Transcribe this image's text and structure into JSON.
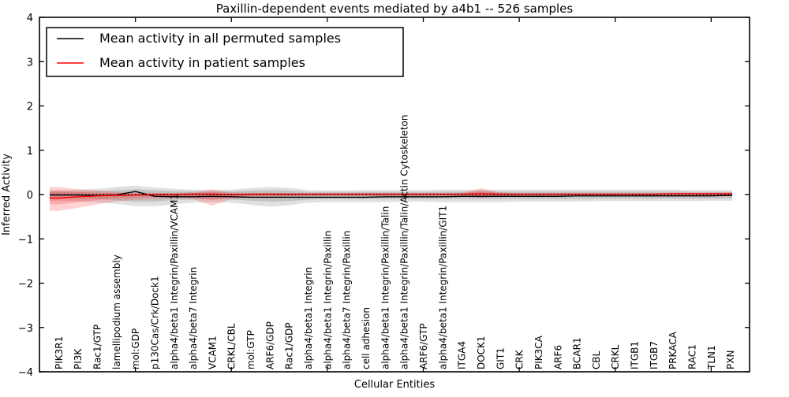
{
  "chart_data": {
    "type": "line",
    "title": "Paxillin-dependent events mediated by a4b1 -- 526 samples",
    "xlabel": "Cellular Entities",
    "ylabel": "Inferred Activity",
    "ylim": [
      -4,
      4
    ],
    "xlim": [
      0,
      37
    ],
    "yticks": [
      -4,
      -3,
      -2,
      -1,
      0,
      1,
      2,
      3,
      4
    ],
    "xticks_unlabeled": [
      5,
      10,
      15,
      20,
      25,
      30,
      35
    ],
    "grid": false,
    "legend_position": "upper left",
    "categories": [
      "PIK3R1",
      "PI3K",
      "Rac1/GTP",
      "lamellipodium assembly",
      "mol:GDP",
      "p130Cas/Crk/Dock1",
      "alpha4/beta1 Integrin/Paxillin/VCAM1",
      "alpha4/beta7 Integrin",
      "VCAM1",
      "CRKL/CBL",
      "mol:GTP",
      "ARF6/GDP",
      "Rac1/GDP",
      "alpha4/beta1 Integrin",
      "alpha4/beta1 Integrin/Paxillin",
      "alpha4/beta7 Integrin/Paxillin",
      "cell adhesion",
      "alpha4/beta1 Integrin/Paxillin/Talin",
      "alpha4/beta1 Integrin/Paxillin/Talin/Actin Cytoskeleton",
      "ARF6/GTP",
      "alpha4/beta1 Integrin/Paxillin/GIT1",
      "ITGA4",
      "DOCK1",
      "GIT1",
      "CRK",
      "PIK3CA",
      "ARF6",
      "BCAR1",
      "CBL",
      "CRKL",
      "ITGB1",
      "ITGB7",
      "PRKACA",
      "RAC1",
      "TLN1",
      "PXN"
    ],
    "zero_line": {
      "value": 0,
      "style": "dotted",
      "color": "#000000"
    },
    "legend": {
      "entries": [
        {
          "label": "Mean activity in all permuted samples",
          "color": "#000000"
        },
        {
          "label": "Mean activity in patient samples",
          "color": "#ff0000"
        }
      ]
    },
    "series": [
      {
        "name": "Mean activity in all permuted samples",
        "color": "#000000",
        "values": [
          -0.01,
          -0.01,
          -0.02,
          -0.01,
          0.07,
          -0.04,
          -0.05,
          -0.05,
          -0.04,
          -0.05,
          -0.06,
          -0.06,
          -0.06,
          -0.06,
          -0.06,
          -0.06,
          -0.06,
          -0.05,
          -0.05,
          -0.05,
          -0.05,
          -0.04,
          -0.04,
          -0.04,
          -0.04,
          -0.04,
          -0.04,
          -0.03,
          -0.03,
          -0.03,
          -0.03,
          -0.03,
          -0.03,
          -0.03,
          -0.03,
          -0.02
        ]
      },
      {
        "name": "Mean activity in patient samples",
        "color": "#ff0000",
        "values": [
          -0.08,
          -0.05,
          -0.03,
          -0.02,
          -0.01,
          0.0,
          0.0,
          0.01,
          0.01,
          0.0,
          0.01,
          0.01,
          0.01,
          0.01,
          0.01,
          0.01,
          0.01,
          0.01,
          0.01,
          0.01,
          0.01,
          0.01,
          0.02,
          0.01,
          0.01,
          0.01,
          0.01,
          0.01,
          0.01,
          0.01,
          0.01,
          0.01,
          0.02,
          0.02,
          0.02,
          0.02
        ]
      }
    ],
    "bands": [
      {
        "name": "permuted-std-outer",
        "color": "#000000",
        "opacity": 0.12,
        "upper": [
          0.1,
          0.11,
          0.13,
          0.17,
          0.2,
          0.16,
          0.13,
          0.11,
          0.11,
          0.11,
          0.15,
          0.17,
          0.15,
          0.1,
          0.09,
          0.09,
          0.1,
          0.1,
          0.1,
          0.1,
          0.11,
          0.11,
          0.11,
          0.11,
          0.11,
          0.11,
          0.11,
          0.11,
          0.11,
          0.11,
          0.11,
          0.11,
          0.11,
          0.1,
          0.1,
          0.1
        ],
        "lower": [
          -0.14,
          -0.15,
          -0.17,
          -0.21,
          -0.26,
          -0.26,
          -0.22,
          -0.18,
          -0.17,
          -0.18,
          -0.23,
          -0.27,
          -0.24,
          -0.18,
          -0.17,
          -0.17,
          -0.17,
          -0.17,
          -0.16,
          -0.16,
          -0.17,
          -0.17,
          -0.17,
          -0.17,
          -0.16,
          -0.16,
          -0.16,
          -0.16,
          -0.15,
          -0.15,
          -0.15,
          -0.15,
          -0.15,
          -0.15,
          -0.14,
          -0.14
        ]
      },
      {
        "name": "permuted-std-inner",
        "color": "#000000",
        "opacity": 0.12,
        "upper": [
          0.06,
          0.07,
          0.08,
          0.1,
          0.12,
          0.1,
          0.08,
          0.07,
          0.07,
          0.07,
          0.09,
          0.1,
          0.09,
          0.06,
          0.06,
          0.06,
          0.06,
          0.06,
          0.06,
          0.06,
          0.07,
          0.07,
          0.07,
          0.07,
          0.07,
          0.07,
          0.07,
          0.07,
          0.07,
          0.07,
          0.07,
          0.07,
          0.07,
          0.06,
          0.06,
          0.06
        ],
        "lower": [
          -0.09,
          -0.09,
          -0.1,
          -0.13,
          -0.16,
          -0.16,
          -0.13,
          -0.11,
          -0.1,
          -0.11,
          -0.14,
          -0.16,
          -0.15,
          -0.11,
          -0.1,
          -0.1,
          -0.1,
          -0.1,
          -0.1,
          -0.1,
          -0.1,
          -0.1,
          -0.1,
          -0.1,
          -0.1,
          -0.1,
          -0.1,
          -0.1,
          -0.09,
          -0.09,
          -0.09,
          -0.09,
          -0.09,
          -0.09,
          -0.09,
          -0.09
        ]
      },
      {
        "name": "patient-std-outer",
        "color": "#ff0000",
        "opacity": 0.18,
        "upper": [
          0.17,
          0.12,
          0.09,
          0.06,
          0.05,
          0.04,
          0.04,
          0.05,
          0.11,
          0.05,
          0.04,
          0.04,
          0.03,
          0.03,
          0.03,
          0.03,
          0.03,
          0.03,
          0.03,
          0.03,
          0.03,
          0.04,
          0.14,
          0.05,
          0.03,
          0.03,
          0.03,
          0.03,
          0.03,
          0.03,
          0.03,
          0.03,
          0.04,
          0.04,
          0.04,
          0.05
        ],
        "lower": [
          -0.37,
          -0.3,
          -0.22,
          -0.15,
          -0.12,
          -0.1,
          -0.08,
          -0.1,
          -0.25,
          -0.1,
          -0.06,
          -0.06,
          -0.05,
          -0.04,
          -0.04,
          -0.04,
          -0.04,
          -0.04,
          -0.04,
          -0.04,
          -0.04,
          -0.04,
          -0.08,
          -0.05,
          -0.04,
          -0.03,
          -0.03,
          -0.03,
          -0.03,
          -0.03,
          -0.03,
          -0.03,
          -0.03,
          -0.03,
          -0.03,
          -0.04
        ]
      },
      {
        "name": "patient-std-inner",
        "color": "#ff0000",
        "opacity": 0.18,
        "upper": [
          0.08,
          0.06,
          0.04,
          0.03,
          0.02,
          0.02,
          0.02,
          0.03,
          0.06,
          0.02,
          0.02,
          0.02,
          0.02,
          0.02,
          0.02,
          0.02,
          0.02,
          0.02,
          0.02,
          0.02,
          0.02,
          0.02,
          0.08,
          0.03,
          0.02,
          0.02,
          0.02,
          0.02,
          0.02,
          0.02,
          0.02,
          0.02,
          0.02,
          0.02,
          0.02,
          0.03
        ],
        "lower": [
          -0.22,
          -0.17,
          -0.12,
          -0.08,
          -0.06,
          -0.05,
          -0.04,
          -0.05,
          -0.13,
          -0.05,
          -0.04,
          -0.03,
          -0.03,
          -0.02,
          -0.02,
          -0.02,
          -0.02,
          -0.02,
          -0.02,
          -0.02,
          -0.02,
          -0.02,
          -0.04,
          -0.03,
          -0.02,
          -0.02,
          -0.02,
          -0.02,
          -0.02,
          -0.02,
          -0.02,
          -0.02,
          -0.02,
          -0.02,
          -0.02,
          -0.02
        ]
      }
    ]
  }
}
